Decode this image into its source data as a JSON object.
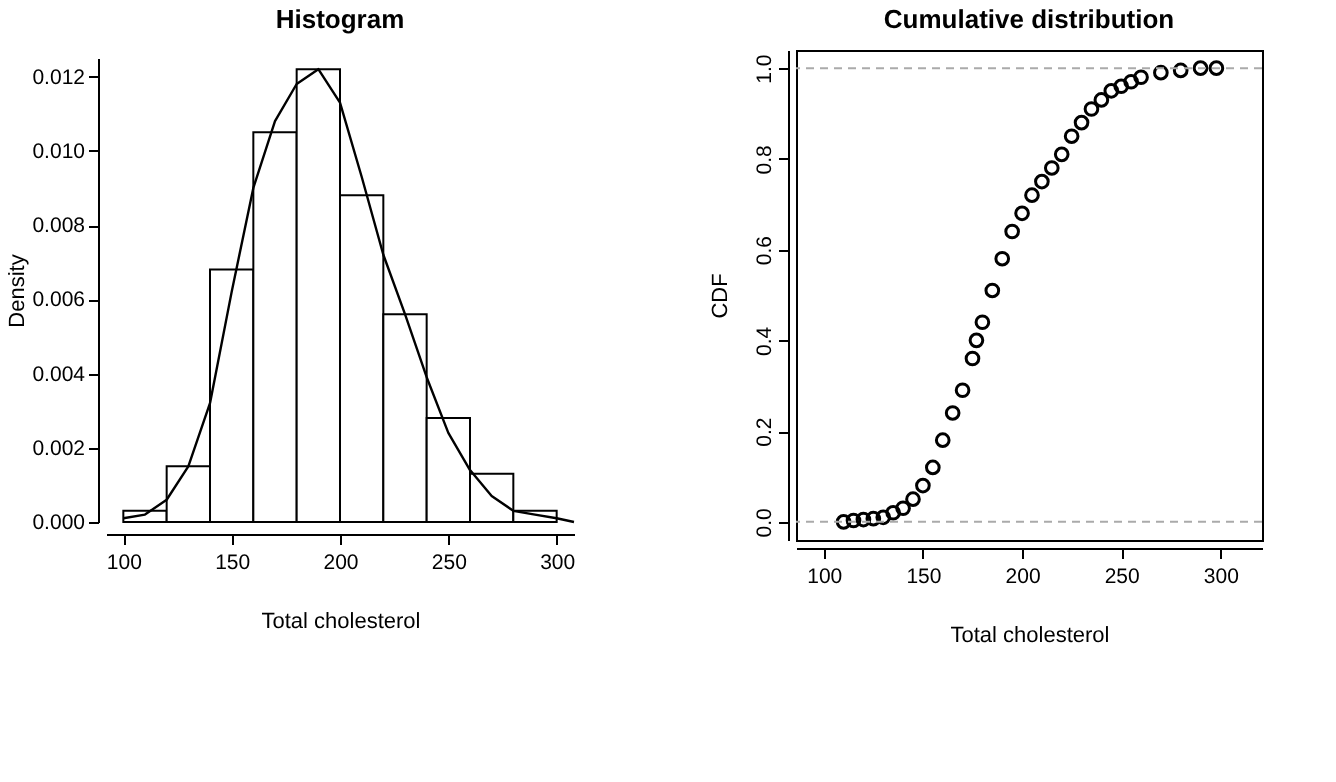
{
  "chart_data": [
    {
      "type": "histogram",
      "title": "Histogram",
      "xlabel": "Total cholesterol",
      "ylabel": "Density",
      "xlim": [
        92,
        308
      ],
      "xticks": [
        100,
        150,
        200,
        250,
        300
      ],
      "ylim": [
        0,
        0.0125
      ],
      "yticks": [
        {
          "value": 0,
          "label": "0.000"
        },
        0.002,
        0.004,
        0.006,
        0.008,
        {
          "value": 0.01,
          "label": "0.010"
        },
        0.012
      ],
      "series": [
        {
          "type": "histogram",
          "color": "#ffffff",
          "bins": [
            100,
            120,
            140,
            160,
            180,
            200,
            220,
            240,
            260,
            280,
            300
          ],
          "values": [
            0.0003,
            0.0015,
            0.0068,
            0.0105,
            0.0122,
            0.0088,
            0.0056,
            0.0028,
            0.0013,
            0.0003
          ]
        },
        {
          "type": "line",
          "color": "#000000",
          "x": [
            100,
            110,
            120,
            130,
            140,
            150,
            160,
            170,
            180,
            190,
            200,
            210,
            220,
            230,
            240,
            250,
            260,
            270,
            280,
            290,
            300,
            308
          ],
          "values": [
            0.0001,
            0.0002,
            0.0006,
            0.0015,
            0.0032,
            0.0062,
            0.009,
            0.0108,
            0.0118,
            0.0122,
            0.0113,
            0.0093,
            0.0072,
            0.0056,
            0.0039,
            0.0024,
            0.0014,
            0.0007,
            0.0003,
            0.0002,
            0.0001,
            0.0
          ]
        }
      ]
    },
    {
      "type": "scatter",
      "title": "Cumulative distribution",
      "xlabel": "Total cholesterol",
      "ylabel": "CDF",
      "marker": "circle",
      "xlim": [
        86,
        321
      ],
      "xticks": [
        100,
        150,
        200,
        250,
        300
      ],
      "ylim": [
        -0.04,
        1.04
      ],
      "yticks": [
        {
          "value": 0,
          "label": "0.0"
        },
        0.2,
        0.4,
        0.6,
        0.8,
        {
          "value": 1,
          "label": "1.0"
        }
      ],
      "ref_lines": [
        {
          "axis": "y",
          "value": 0,
          "color": "#aaaaaa",
          "line_style": "dashed"
        },
        {
          "axis": "y",
          "value": 1,
          "color": "#aaaaaa",
          "line_style": "dashed"
        }
      ],
      "series": [
        {
          "color": "#000000",
          "x": [
            110,
            115,
            120,
            125,
            130,
            135,
            140,
            145,
            150,
            155,
            160,
            165,
            170,
            175,
            177,
            180,
            185,
            190,
            195,
            200,
            205,
            210,
            215,
            220,
            225,
            230,
            235,
            240,
            245,
            250,
            255,
            260,
            270,
            280,
            290,
            298
          ],
          "values": [
            0.0,
            0.003,
            0.005,
            0.007,
            0.01,
            0.02,
            0.03,
            0.05,
            0.08,
            0.12,
            0.18,
            0.24,
            0.29,
            0.36,
            0.4,
            0.44,
            0.51,
            0.58,
            0.64,
            0.68,
            0.72,
            0.75,
            0.78,
            0.81,
            0.85,
            0.88,
            0.91,
            0.93,
            0.95,
            0.96,
            0.97,
            0.98,
            0.99,
            0.995,
            1.0,
            1.0
          ]
        }
      ]
    }
  ]
}
